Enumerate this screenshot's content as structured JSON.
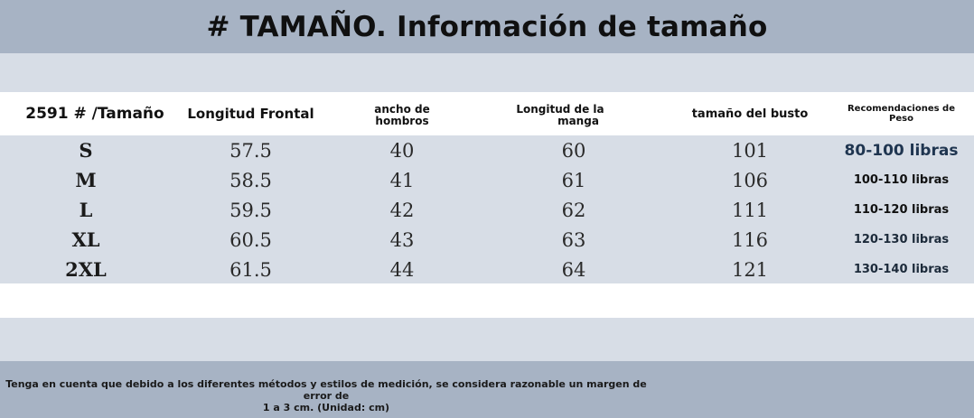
{
  "title": "# TAMAÑO. Información de tamaño",
  "headers": {
    "size": "2591 # /Tamaño",
    "front_length": "Longitud Frontal",
    "shoulder_line1": "ancho de",
    "shoulder_line2": "hombros",
    "sleeve_line1": "Longitud de la",
    "sleeve_line2": "manga",
    "bust": "tamaño del busto",
    "weight_line1": "Recomendaciones de",
    "weight_line2": "Peso"
  },
  "rows": [
    {
      "size": "S",
      "front": "57.5",
      "shoulder": "40",
      "sleeve": "60",
      "bust": "101",
      "weight": "80-100 libras"
    },
    {
      "size": "M",
      "front": "58.5",
      "shoulder": "41",
      "sleeve": "61",
      "bust": "106",
      "weight": "100-110 libras"
    },
    {
      "size": "L",
      "front": "59.5",
      "shoulder": "42",
      "sleeve": "62",
      "bust": "111",
      "weight": "110-120 libras"
    },
    {
      "size": "XL",
      "front": "60.5",
      "shoulder": "43",
      "sleeve": "63",
      "bust": "116",
      "weight": "120-130 libras"
    },
    {
      "size": "2XL",
      "front": "61.5",
      "shoulder": "44",
      "sleeve": "64",
      "bust": "121",
      "weight": "130-140 libras"
    }
  ],
  "note_line1": "Tenga en cuenta que debido a los diferentes métodos y estilos de medición, se considera razonable un margen de error de",
  "note_line2": "1 a 3 cm. (Unidad: cm)",
  "colors": {
    "title_band": "#a7b3c4",
    "light_band": "#d7dde6",
    "weight_text": "#1c2a3a"
  }
}
